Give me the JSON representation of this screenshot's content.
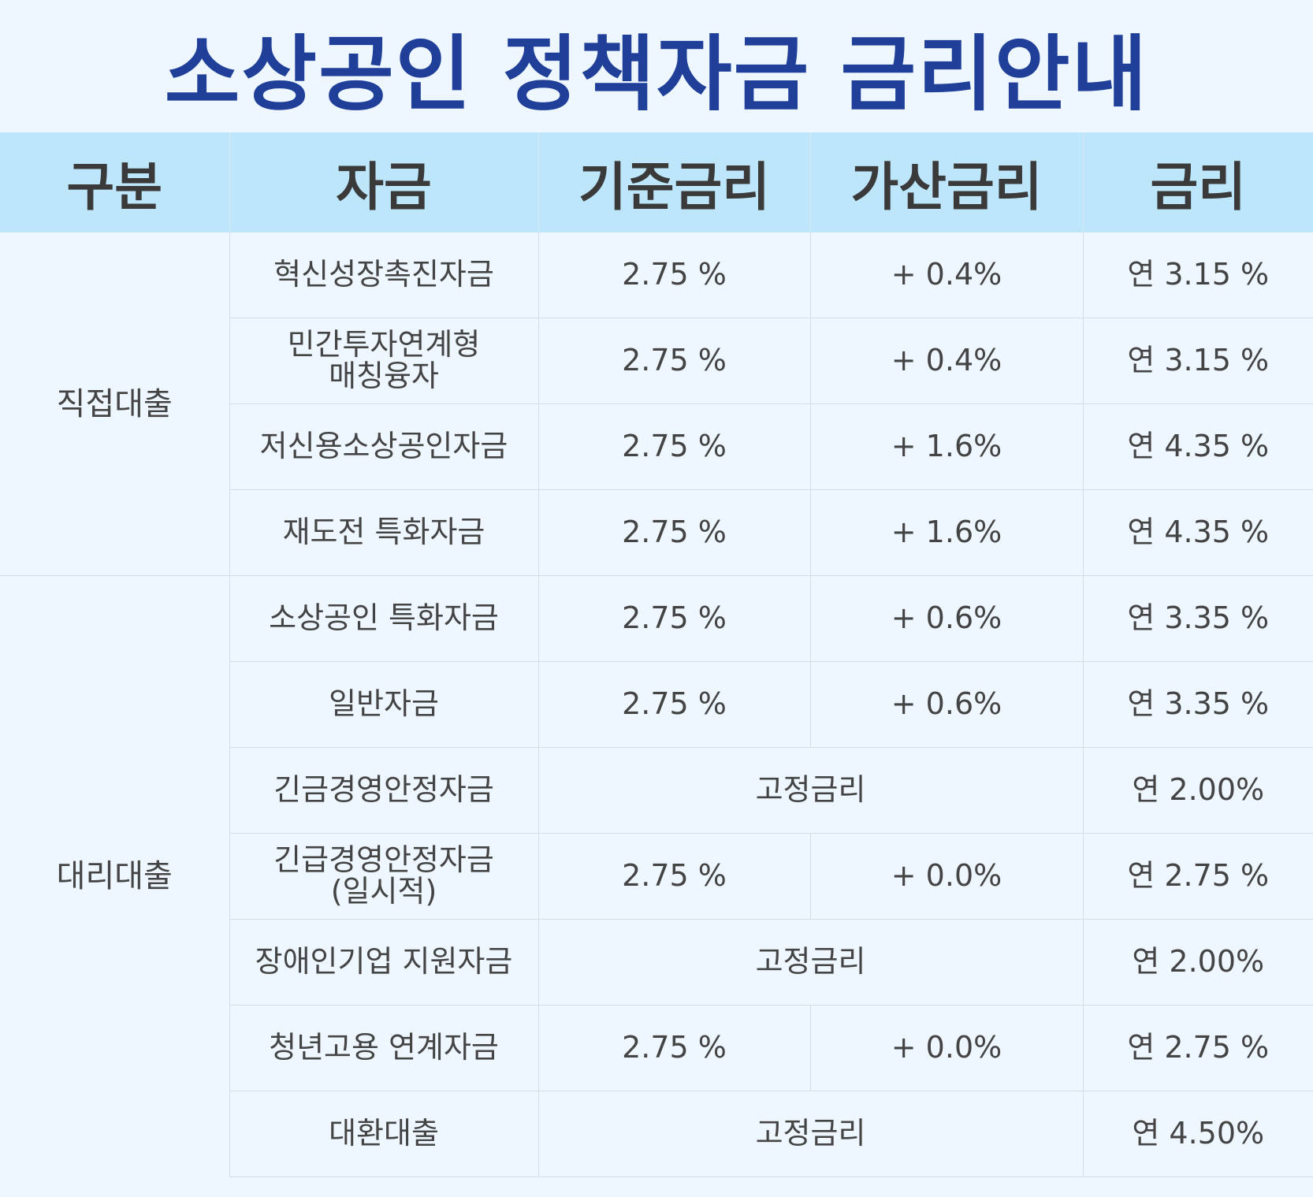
{
  "title": "소상공인 정책자금 금리안내",
  "columns": [
    "구분",
    "자금",
    "기준금리",
    "가산금리",
    "금리"
  ],
  "groups": [
    {
      "label": "직접대출"
    },
    {
      "label": "대리대출"
    }
  ],
  "rows": [
    {
      "fund": "혁신성장촉진자금",
      "base": "2.75 %",
      "add": "+ 0.4%",
      "rate": "연 3.15 %"
    },
    {
      "fund_line1": "민간투자연계형",
      "fund_line2": "매칭융자",
      "base": "2.75 %",
      "add": "+ 0.4%",
      "rate": "연 3.15 %"
    },
    {
      "fund": "저신용소상공인자금",
      "base": "2.75 %",
      "add": "+ 1.6%",
      "rate": "연 4.35 %"
    },
    {
      "fund": "재도전 특화자금",
      "base": "2.75 %",
      "add": "+ 1.6%",
      "rate": "연 4.35 %"
    },
    {
      "fund": "소상공인 특화자금",
      "base": "2.75 %",
      "add": "+ 0.6%",
      "rate": "연 3.35 %"
    },
    {
      "fund": "일반자금",
      "base": "2.75 %",
      "add": "+ 0.6%",
      "rate": "연 3.35 %"
    },
    {
      "fund": "긴금경영안정자금",
      "fixed": "고정금리",
      "rate": "연 2.00%"
    },
    {
      "fund_line1": "긴급경영안정자금",
      "fund_line2": "(일시적)",
      "base": "2.75 %",
      "add": "+ 0.0%",
      "rate": "연 2.75 %"
    },
    {
      "fund": "장애인기업 지원자금",
      "fixed": "고정금리",
      "rate": "연 2.00%"
    },
    {
      "fund": "청년고용 연계자금",
      "base": "2.75 %",
      "add": "+ 0.0%",
      "rate": "연 2.75 %"
    },
    {
      "fund": "대환대출",
      "fixed": "고정금리",
      "rate": "연 4.50%"
    }
  ]
}
